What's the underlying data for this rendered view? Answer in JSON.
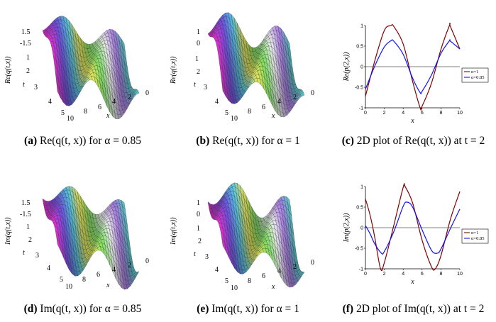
{
  "colors": {
    "red_series": "#800000",
    "blue_series": "#1010ff"
  },
  "panels": [
    {
      "id": "a",
      "kind": "surface",
      "fn": "re",
      "alpha": 0.85,
      "zlabel": "Re(q(t,x))",
      "ticks_z": [
        "1.5",
        "-1.5"
      ],
      "ticks_t": [
        "1",
        "2",
        "3",
        "4",
        "5"
      ],
      "ticks_x": [
        "10",
        "8",
        "6",
        "4",
        "2",
        "0"
      ],
      "tlabel": "t",
      "xlabel": "x",
      "caption_label": "(a)",
      "caption_text": "Re(q(t, x)) for α = 0.85"
    },
    {
      "id": "b",
      "kind": "surface",
      "fn": "re",
      "alpha": 1,
      "zlabel": "Re(q(t,x))",
      "ticks_z": [
        "1",
        "0"
      ],
      "ticks_t": [
        "1",
        "2",
        "3",
        "4",
        "5"
      ],
      "ticks_x": [
        "10",
        "8",
        "6",
        "4",
        "2",
        "0"
      ],
      "tlabel": "t",
      "xlabel": "x",
      "caption_label": "(b)",
      "caption_text": "Re(q(t, x)) for α = 1"
    },
    {
      "id": "c",
      "kind": "line2d",
      "caption_label": "(c)",
      "caption_text": "2D plot of Re(q(t, x)) at t = 2"
    },
    {
      "id": "d",
      "kind": "surface",
      "fn": "im",
      "alpha": 0.85,
      "zlabel": "Im(q(t,x))",
      "ticks_z": [
        "1.5",
        "-1.5"
      ],
      "ticks_t": [
        "1",
        "2",
        "3",
        "4",
        "5"
      ],
      "ticks_x": [
        "10",
        "8",
        "6",
        "4",
        "2",
        "0"
      ],
      "tlabel": "t",
      "xlabel": "x",
      "caption_label": "(d)",
      "caption_text": "Im(q(t, x)) for α = 0.85"
    },
    {
      "id": "e",
      "kind": "surface",
      "fn": "im",
      "alpha": 1,
      "zlabel": "Im(q(t,x))",
      "ticks_z": [
        "1",
        "0"
      ],
      "ticks_t": [
        "1",
        "2",
        "3",
        "4",
        "5"
      ],
      "ticks_x": [
        "10",
        "8",
        "6",
        "4",
        "2",
        "0"
      ],
      "tlabel": "t",
      "xlabel": "x",
      "caption_label": "(e)",
      "caption_text": "Im(q(t, x)) for α = 1"
    },
    {
      "id": "f",
      "kind": "line2d",
      "caption_label": "(f)",
      "caption_text": "2D plot of Im(q(t, x)) at t = 2"
    }
  ],
  "chart_data": [
    {
      "type": "line",
      "panel": "c",
      "title": "",
      "xlabel": "x",
      "ylabel": "Re(p(2,x))",
      "xlim": [
        0,
        10
      ],
      "ylim": [
        -1,
        1
      ],
      "xticks": [
        "0",
        "2",
        "4",
        "6",
        "8",
        "10"
      ],
      "yticks": [
        "1",
        "0.5",
        "0",
        "-0.5",
        "-1"
      ],
      "legend_position": "right",
      "series": [
        {
          "name": "α=1",
          "color": "red",
          "x": [
            0,
            1,
            2,
            2.7,
            3,
            4,
            5,
            5.8,
            6,
            7,
            8,
            8.9,
            9,
            10
          ],
          "y": [
            -0.72,
            0.15,
            0.88,
            1.0,
            0.98,
            0.55,
            -0.36,
            -1.0,
            -0.96,
            -0.4,
            0.42,
            1.0,
            0.98,
            0.43
          ]
        },
        {
          "name": "α=0.85",
          "color": "blue",
          "x": [
            0,
            1,
            2,
            2.7,
            3,
            4,
            5,
            5.8,
            6,
            7,
            8,
            8.9,
            9,
            10
          ],
          "y": [
            -0.55,
            0.02,
            0.48,
            0.63,
            0.62,
            0.3,
            -0.28,
            -0.63,
            -0.6,
            -0.2,
            0.32,
            0.63,
            0.62,
            0.43
          ]
        }
      ]
    },
    {
      "type": "line",
      "panel": "f",
      "title": "",
      "xlabel": "x",
      "ylabel": "Im(p(2,x))",
      "xlim": [
        0,
        10
      ],
      "ylim": [
        -1,
        1
      ],
      "xticks": [
        "0",
        "2",
        "4",
        "6",
        "8",
        "10"
      ],
      "yticks": [
        "1",
        "0.5",
        "0",
        "-0.5",
        "-1"
      ],
      "legend_position": "right",
      "series": [
        {
          "name": "α=1",
          "color": "red",
          "x": [
            0,
            0.5,
            1,
            1.6,
            2,
            3,
            4,
            4.2,
            5,
            6,
            7,
            7.4,
            8,
            9,
            10
          ],
          "y": [
            0.7,
            0.3,
            -0.25,
            -1.0,
            -0.85,
            0.05,
            0.98,
            1.0,
            0.6,
            -0.3,
            -0.95,
            -1.0,
            -0.68,
            0.2,
            0.88
          ]
        },
        {
          "name": "α=0.85",
          "color": "blue",
          "x": [
            0,
            0.5,
            1,
            1.7,
            2,
            3,
            4,
            4.4,
            5,
            6,
            7,
            7.6,
            8,
            9,
            10
          ],
          "y": [
            0.05,
            -0.15,
            -0.4,
            -0.62,
            -0.58,
            -0.1,
            0.52,
            0.62,
            0.5,
            -0.05,
            -0.55,
            -0.62,
            -0.52,
            -0.02,
            0.45
          ]
        }
      ]
    }
  ]
}
